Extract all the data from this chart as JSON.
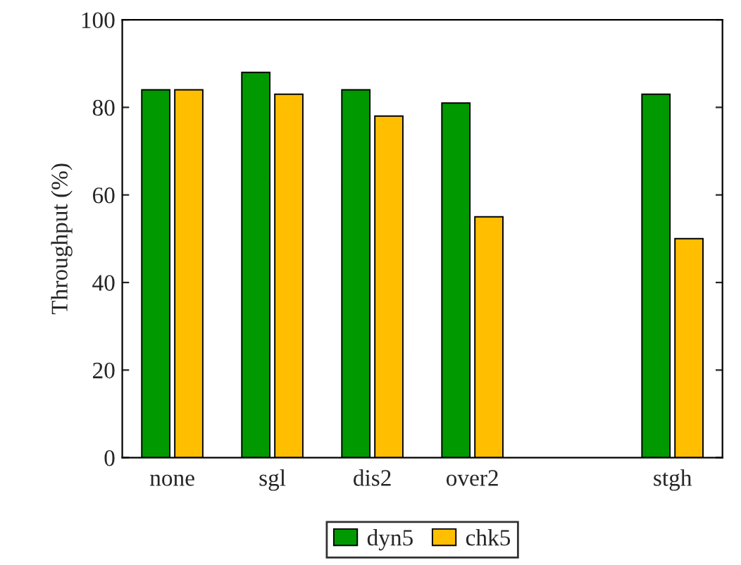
{
  "chart_data": {
    "type": "bar",
    "ylabel": "Throughput (%)",
    "categories": [
      "none",
      "sgl",
      "dis2",
      "over2",
      null,
      "stgh"
    ],
    "series": [
      {
        "name": "dyn5",
        "color": "#009900",
        "values": [
          84,
          88,
          84,
          81,
          null,
          83
        ]
      },
      {
        "name": "chk5",
        "color": "#ffbf00",
        "values": [
          84,
          83,
          78,
          55,
          null,
          50
        ]
      }
    ],
    "ylim": [
      0,
      100
    ],
    "yticks": [
      0,
      20,
      40,
      60,
      80,
      100
    ],
    "grid": false,
    "legend": "bottom"
  }
}
